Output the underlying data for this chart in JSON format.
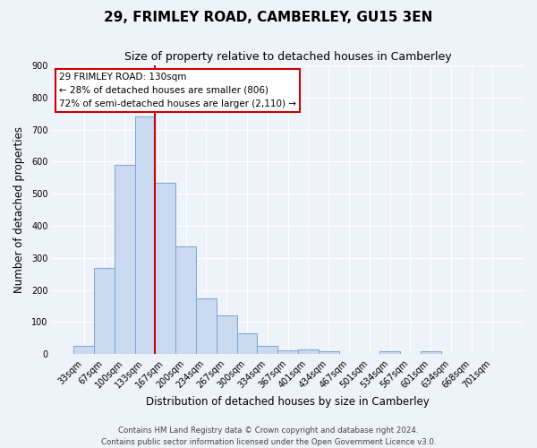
{
  "title": "29, FRIMLEY ROAD, CAMBERLEY, GU15 3EN",
  "subtitle": "Size of property relative to detached houses in Camberley",
  "xlabel": "Distribution of detached houses by size in Camberley",
  "ylabel": "Number of detached properties",
  "bar_labels": [
    "33sqm",
    "67sqm",
    "100sqm",
    "133sqm",
    "167sqm",
    "200sqm",
    "234sqm",
    "267sqm",
    "300sqm",
    "334sqm",
    "367sqm",
    "401sqm",
    "434sqm",
    "467sqm",
    "501sqm",
    "534sqm",
    "567sqm",
    "601sqm",
    "634sqm",
    "668sqm",
    "701sqm"
  ],
  "bar_values": [
    25,
    270,
    590,
    740,
    535,
    335,
    175,
    120,
    65,
    25,
    13,
    15,
    10,
    0,
    0,
    10,
    0,
    10,
    0,
    0,
    0
  ],
  "bar_color": "#c9d9f0",
  "bar_edge_color": "#7aa6d4",
  "vline_index": 3,
  "annotation_line1": "29 FRIMLEY ROAD: 130sqm",
  "annotation_line2": "← 28% of detached houses are smaller (806)",
  "annotation_line3": "72% of semi-detached houses are larger (2,110) →",
  "vline_color": "#cc0000",
  "ylim": [
    0,
    900
  ],
  "yticks": [
    0,
    100,
    200,
    300,
    400,
    500,
    600,
    700,
    800,
    900
  ],
  "footer_line1": "Contains HM Land Registry data © Crown copyright and database right 2024.",
  "footer_line2": "Contains public sector information licensed under the Open Government Licence v3.0.",
  "bg_color": "#eef2f9",
  "grid_color": "#ffffff"
}
